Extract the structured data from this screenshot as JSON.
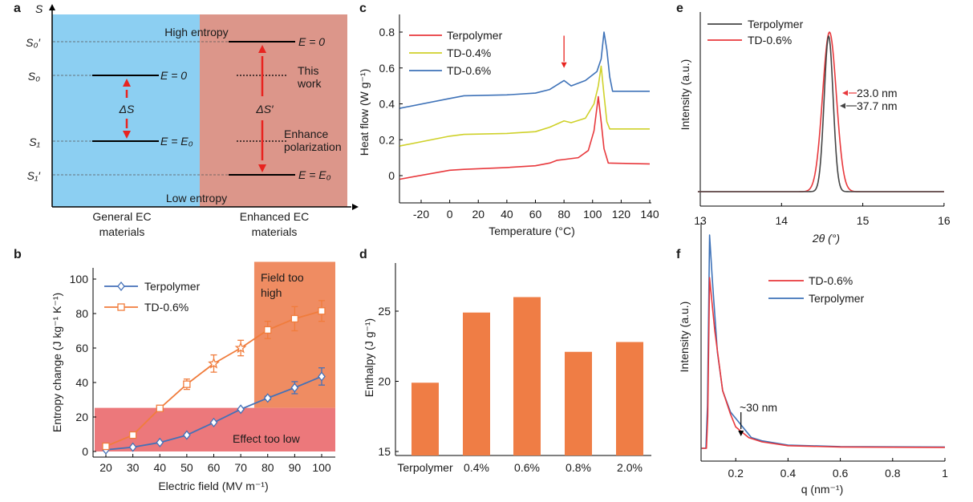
{
  "panel_letters": [
    "a",
    "b",
    "c",
    "d",
    "e",
    "f"
  ],
  "colors": {
    "blue_bg": "#8ccff2",
    "pink_bg": "#dc968a",
    "arrow_red": "#e8231f",
    "terpolymer_b": "#4471b8",
    "td06_b": "#f07c3c",
    "field_high": "#ef8c62",
    "effect_low": "#ec787b",
    "bar": "#ef7d45",
    "red": "#e8383c",
    "yellow": "#cfd12a",
    "blue": "#3e72b8",
    "gray": "#444444"
  },
  "diagram_a": {
    "axis_label": "S",
    "levels": [
      "S₀′",
      "S₀",
      "S₁",
      "S₁′"
    ],
    "high_entropy": "High entropy",
    "low_entropy": "Low entropy",
    "left_e0": "E = 0",
    "left_ee0": "E = E₀",
    "right_e0": "E = 0",
    "right_ee0": "E = E₀",
    "delta_s": "ΔS",
    "delta_s_prime": "ΔS′",
    "this_work": [
      "This",
      "work"
    ],
    "enhance": [
      "Enhance",
      "polarization"
    ],
    "left_category": [
      "General EC",
      "materials"
    ],
    "right_category": [
      "Enhanced EC",
      "materials"
    ]
  },
  "chart_data": [
    {
      "panel": "b",
      "type": "line",
      "xlabel": "Electric field (MV m⁻¹)",
      "ylabel": "Entropy change (J kg⁻¹ K⁻¹)",
      "xlim": [
        15,
        105
      ],
      "ylim": [
        0,
        110
      ],
      "xticks": [
        20,
        30,
        40,
        50,
        60,
        70,
        80,
        90,
        100
      ],
      "yticks": [
        0,
        20,
        40,
        60,
        80,
        100
      ],
      "x": [
        20,
        30,
        40,
        50,
        60,
        70,
        80,
        90,
        100
      ],
      "series": [
        {
          "name": "Terpolymer",
          "marker": "diamond",
          "values": [
            1,
            2.5,
            5.2,
            9.5,
            16.8,
            24.5,
            31,
            37,
            43.5
          ],
          "errors": [
            0,
            0,
            0,
            0,
            0,
            0,
            1,
            3.5,
            5
          ]
        },
        {
          "name": "TD-0.6%",
          "marker": "square",
          "values": [
            3,
            9.5,
            25,
            39,
            51,
            60,
            70.5,
            77,
            81.5
          ],
          "errors": [
            0,
            0,
            0,
            3,
            5,
            4.5,
            5,
            7,
            6
          ],
          "star_at": [
            60,
            70
          ]
        }
      ],
      "regions": [
        {
          "label": [
            "Field too high"
          ],
          "label_lines": [
            "Field too",
            "high"
          ],
          "x_from": 75,
          "x_to": 105,
          "y_from": 25.3,
          "y_to": 110
        },
        {
          "label_lines": [
            "Effect too low"
          ],
          "x_from": 15,
          "x_to": 105,
          "y_from": 0,
          "y_to": 25.3
        }
      ],
      "legend": "top-left"
    },
    {
      "panel": "c",
      "type": "line",
      "xlabel": "Temperature (°C)",
      "ylabel": "Heat flow (W g⁻¹)",
      "xlim": [
        -35,
        145
      ],
      "ylim": [
        -0.15,
        0.9
      ],
      "xticks": [
        -20,
        0,
        20,
        40,
        60,
        80,
        100,
        120,
        140
      ],
      "yticks": [
        0,
        0.2,
        0.4,
        0.6,
        0.8
      ],
      "series": [
        {
          "name": "Terpolymer",
          "color": "red",
          "points": [
            [
              -35,
              -0.02
            ],
            [
              0,
              0.03
            ],
            [
              10,
              0.035
            ],
            [
              40,
              0.045
            ],
            [
              60,
              0.055
            ],
            [
              70,
              0.07
            ],
            [
              75,
              0.085
            ],
            [
              80,
              0.09
            ],
            [
              90,
              0.1
            ],
            [
              97,
              0.14
            ],
            [
              101,
              0.25
            ],
            [
              104,
              0.44
            ],
            [
              106,
              0.3
            ],
            [
              108,
              0.15
            ],
            [
              111,
              0.07
            ],
            [
              140,
              0.065
            ]
          ]
        },
        {
          "name": "TD-0.4%",
          "color": "yellow",
          "points": [
            [
              -35,
              0.165
            ],
            [
              0,
              0.22
            ],
            [
              10,
              0.23
            ],
            [
              40,
              0.235
            ],
            [
              60,
              0.245
            ],
            [
              70,
              0.27
            ],
            [
              80,
              0.305
            ],
            [
              85,
              0.295
            ],
            [
              95,
              0.32
            ],
            [
              101,
              0.4
            ],
            [
              104,
              0.5
            ],
            [
              106,
              0.61
            ],
            [
              108,
              0.45
            ],
            [
              110,
              0.3
            ],
            [
              112,
              0.26
            ],
            [
              140,
              0.26
            ]
          ]
        },
        {
          "name": "TD-0.6%",
          "color": "blue",
          "points": [
            [
              -35,
              0.375
            ],
            [
              0,
              0.43
            ],
            [
              10,
              0.445
            ],
            [
              40,
              0.45
            ],
            [
              60,
              0.46
            ],
            [
              70,
              0.48
            ],
            [
              80,
              0.53
            ],
            [
              85,
              0.5
            ],
            [
              95,
              0.53
            ],
            [
              103,
              0.58
            ],
            [
              106,
              0.65
            ],
            [
              108,
              0.8
            ],
            [
              110,
              0.7
            ],
            [
              112,
              0.55
            ],
            [
              114,
              0.47
            ],
            [
              140,
              0.47
            ]
          ]
        }
      ],
      "arrow": {
        "x": 80,
        "y_from": 0.78,
        "y_to": 0.6
      },
      "legend": "top-left"
    },
    {
      "panel": "d",
      "type": "bar",
      "xlabel": "",
      "ylabel": "Enthalpy (J g⁻¹)",
      "ylim": [
        15,
        28.7
      ],
      "yticks": [
        15,
        20,
        25
      ],
      "categories": [
        "Terpolymer",
        "0.4%",
        "0.6%",
        "0.8%",
        "2.0%"
      ],
      "values": [
        19.9,
        24.9,
        26.0,
        22.1,
        22.8
      ]
    },
    {
      "panel": "e",
      "type": "line",
      "xlabel": "2θ (°)",
      "ylabel": "Intensity (a.u.)",
      "xlim": [
        13,
        16
      ],
      "xticks": [
        13,
        14,
        15,
        16
      ],
      "series": [
        {
          "name": "Terpolymer",
          "color": "gray",
          "peak_center": 14.58,
          "peak_sigma": 0.055,
          "peak_height": 0.975
        },
        {
          "name": "TD-0.6%",
          "color": "red",
          "peak_center": 14.59,
          "peak_sigma": 0.085,
          "peak_height": 1.0
        }
      ],
      "annotations": [
        {
          "text": "23.0 nm",
          "color": "red"
        },
        {
          "text": "37.7 nm",
          "color": "gray"
        }
      ],
      "legend": "top-left"
    },
    {
      "panel": "f",
      "type": "line",
      "xlabel": "q (nm⁻¹)",
      "ylabel": "Intensity (a.u.)",
      "xlim": [
        0.067,
        1.0
      ],
      "xticks": [
        0.2,
        0.4,
        0.6,
        0.8,
        1.0
      ],
      "series": [
        {
          "name": "TD-0.6%",
          "color": "red",
          "points": [
            [
              0.07,
              0
            ],
            [
              0.088,
              0
            ],
            [
              0.093,
              0.15
            ],
            [
              0.1,
              0.8
            ],
            [
              0.12,
              0.55
            ],
            [
              0.15,
              0.27
            ],
            [
              0.18,
              0.16
            ],
            [
              0.2,
              0.1
            ],
            [
              0.25,
              0.05
            ],
            [
              0.3,
              0.03
            ],
            [
              0.4,
              0.012
            ],
            [
              0.6,
              0.006
            ],
            [
              1.0,
              0.004
            ]
          ]
        },
        {
          "name": "Terpolymer",
          "color": "blue",
          "points": [
            [
              0.07,
              0
            ],
            [
              0.086,
              0
            ],
            [
              0.092,
              0.2
            ],
            [
              0.1,
              1.0
            ],
            [
              0.11,
              0.8
            ],
            [
              0.13,
              0.45
            ],
            [
              0.15,
              0.27
            ],
            [
              0.18,
              0.17
            ],
            [
              0.22,
              0.11
            ],
            [
              0.26,
              0.05
            ],
            [
              0.3,
              0.035
            ],
            [
              0.4,
              0.015
            ],
            [
              0.6,
              0.008
            ],
            [
              1.0,
              0.006
            ]
          ]
        }
      ],
      "annotation": {
        "text": "~30 nm",
        "x": 0.22
      },
      "legend": "top-center"
    }
  ]
}
